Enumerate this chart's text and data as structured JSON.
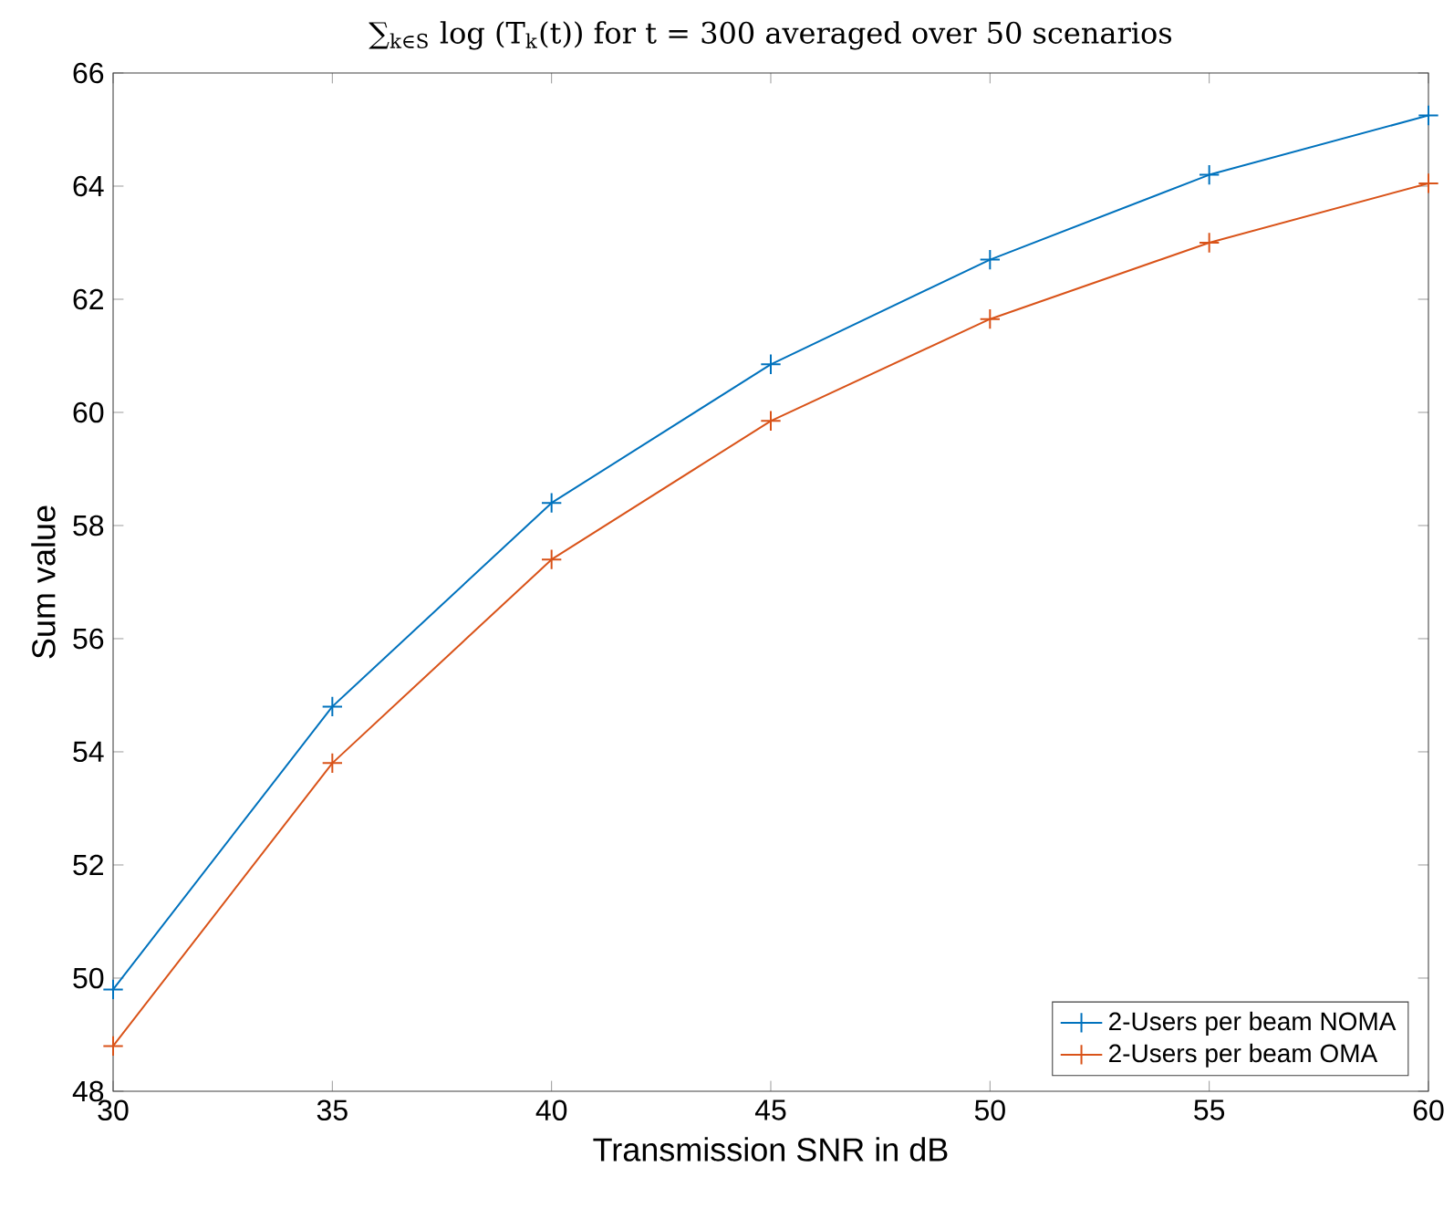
{
  "chart_data": {
    "type": "line",
    "title": "∑$_{k∈S}$ log (T$_{k}$(t)) for t = 300 averaged over 50 scenarios",
    "xlabel": "Transmission SNR in dB",
    "ylabel": "Sum value",
    "x": [
      30,
      35,
      40,
      45,
      50,
      55,
      60
    ],
    "series": [
      {
        "name": "2-Users per beam NOMA",
        "color": "#0072bd",
        "values": [
          49.8,
          54.8,
          58.4,
          60.85,
          62.7,
          64.2,
          65.25
        ]
      },
      {
        "name": "2-Users per beam OMA",
        "color": "#d95319",
        "values": [
          48.8,
          53.8,
          57.4,
          59.85,
          61.65,
          63.0,
          64.05
        ]
      }
    ],
    "xlim": [
      30,
      60
    ],
    "xticks": [
      30,
      35,
      40,
      45,
      50,
      55,
      60
    ],
    "ylim": [
      48,
      66
    ],
    "yticks": [
      48,
      50,
      52,
      54,
      56,
      58,
      60,
      62,
      64,
      66
    ],
    "grid": false,
    "legend": "bottom right",
    "marker": "cross",
    "line_style": "solid"
  }
}
